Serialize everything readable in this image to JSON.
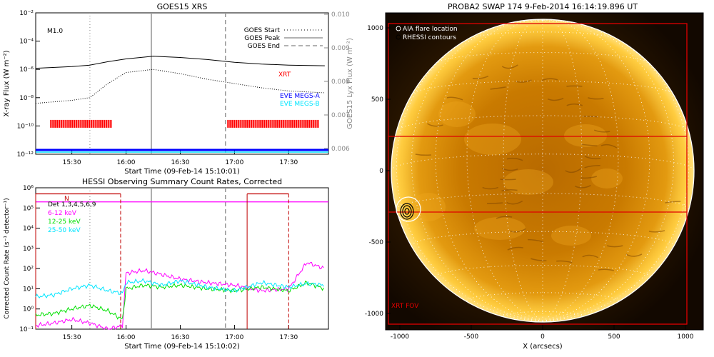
{
  "goes_panel": {
    "title": "GOES15 XRS",
    "ylabel": "X-ray Flux (W m⁻²)",
    "y2label": "GOES15 Lyx Flux (W m⁻²)",
    "xlabel": "Start Time (09-Feb-14 15:10:01)",
    "flare_class": "M1.0",
    "legend": {
      "start": "GOES Start",
      "peak": "GOES Peak",
      "end": "GOES End"
    },
    "xrt_label": "XRT",
    "eve_a_label": "EVE MEGS-A",
    "eve_b_label": "EVE MEGS-B",
    "y_ticks": [
      "10⁻²",
      "10⁻⁴",
      "10⁻⁶",
      "10⁻⁸",
      "10⁻¹⁰",
      "10⁻¹²"
    ],
    "y2_ticks": [
      "0.010",
      "0.009",
      "0.008",
      "0.007",
      "0.006"
    ],
    "x_ticks": [
      "15:30",
      "16:00",
      "16:30",
      "17:00",
      "17:30"
    ]
  },
  "hessi_panel": {
    "title": "HESSI Observing Summary Count Rates, Corrected",
    "ylabel": "Corrected Count Rate (s⁻¹ detector⁻¹)",
    "xlabel": "Start Time (09-Feb-14 15:10:02)",
    "det_label": "Det 1,3,4,5,6,9",
    "attenuator_label": "N",
    "bands": [
      {
        "label": "6-12 keV",
        "color": "#ff00ff"
      },
      {
        "label": "12-25 keV",
        "color": "#00e000"
      },
      {
        "label": "25-50 keV",
        "color": "#00e5ff"
      }
    ],
    "y_ticks": [
      "10⁶",
      "10⁵",
      "10⁴",
      "10³",
      "10²",
      "10¹",
      "10⁰",
      "10⁻¹"
    ],
    "x_ticks": [
      "15:30",
      "16:00",
      "16:30",
      "17:00",
      "17:30"
    ]
  },
  "swap_panel": {
    "title": "PROBA2 SWAP 174  9-Feb-2014 16:14:19.896 UT",
    "legend_aia": "AIA flare location",
    "legend_hessi": "RHESSI contours",
    "xlabel": "X (arcsecs)",
    "fov_label": "XRT FOV",
    "x_ticks": [
      "-1000",
      "-500",
      "0",
      "500",
      "1000"
    ],
    "y_ticks": [
      "1000",
      "500",
      "0",
      "-500",
      "-1000"
    ]
  },
  "chart_data": [
    {
      "type": "line",
      "title": "GOES15 XRS",
      "xlabel": "Start Time (09-Feb-14 15:10:01)",
      "ylabel": "X-ray Flux (W m-2)",
      "y_scale": "log",
      "ylim": [
        1e-12,
        0.01
      ],
      "y2label": "GOES15 Lyx Flux (W m-2)",
      "y2lim": [
        0.006,
        0.01
      ],
      "x_minutes_since_start": [
        0,
        20,
        30,
        40,
        50,
        65,
        80,
        95,
        110,
        125,
        140,
        160
      ],
      "series": [
        {
          "name": "long",
          "color": "#000000",
          "style": "solid",
          "values": [
            1.2e-06,
            1.6e-06,
            2e-06,
            3.5e-06,
            5.5e-06,
            8.5e-06,
            7e-06,
            5e-06,
            3.2e-06,
            2.4e-06,
            2e-06,
            1.8e-06
          ]
        },
        {
          "name": "short",
          "color": "#000000",
          "style": "dotted",
          "values": [
            4e-09,
            6.5e-09,
            1e-08,
            1e-07,
            6e-07,
            1e-06,
            5e-07,
            2e-07,
            1e-07,
            5e-08,
            3e-08,
            2.2e-08
          ]
        }
      ],
      "markers": {
        "GOES Start": "15:40",
        "GOES Peak": "16:14",
        "GOES End": "16:55"
      },
      "xrt_coverage": [
        [
          "15:18",
          "15:52"
        ],
        [
          "16:56",
          "17:46"
        ]
      ],
      "eve_megs_a": "full coverage"
    },
    {
      "type": "line",
      "title": "HESSI Observing Summary Count Rates, Corrected",
      "xlabel": "Start Time (09-Feb-14 15:10:02)",
      "ylabel": "Corrected Count Rate (s-1 detector-1)",
      "y_scale": "log",
      "ylim": [
        0.1,
        1000000.0
      ],
      "x_minutes_since_start": [
        0,
        10,
        20,
        30,
        40,
        48,
        50,
        60,
        70,
        80,
        95,
        110,
        125,
        140,
        150,
        160
      ],
      "series": [
        {
          "name": "6-12 keV",
          "color": "#ff00ff",
          "values": [
            0.15,
            0.2,
            0.3,
            0.2,
            0.1,
            0.15,
            60,
            80,
            50,
            30,
            20,
            15,
            8,
            10,
            200,
            100
          ]
        },
        {
          "name": "12-25 keV",
          "color": "#00e000",
          "values": [
            0.5,
            0.6,
            1.0,
            1.5,
            0.8,
            0.3,
            10,
            15,
            12,
            15,
            10,
            8,
            12,
            8,
            20,
            10
          ]
        },
        {
          "name": "25-50 keV",
          "color": "#00e5ff",
          "values": [
            4,
            5,
            10,
            15,
            8,
            6,
            20,
            25,
            15,
            25,
            12,
            8,
            20,
            12,
            18,
            15
          ]
        }
      ],
      "attenuator_segments": [
        [
          "15:10",
          "15:57"
        ],
        [
          "17:07",
          "17:30"
        ]
      ]
    }
  ]
}
